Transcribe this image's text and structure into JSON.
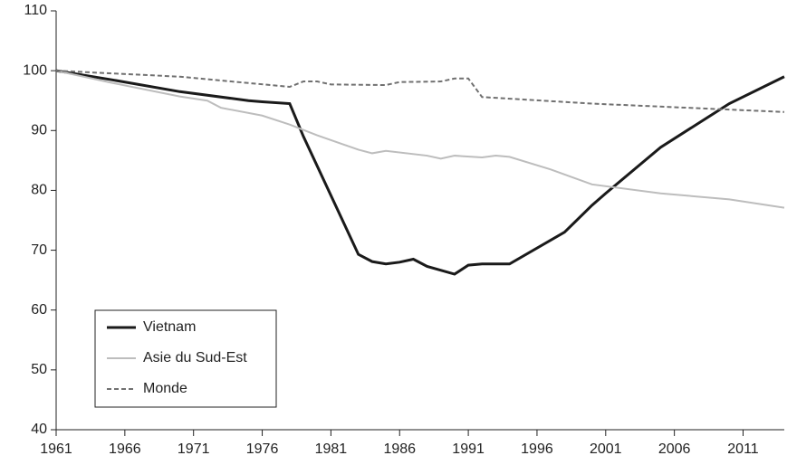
{
  "chart_data": {
    "type": "line",
    "xlim": [
      1961,
      2014
    ],
    "xticks": [
      1961,
      1966,
      1971,
      1976,
      1981,
      1986,
      1991,
      1996,
      2001,
      2006,
      2011
    ],
    "ylim": [
      40,
      110
    ],
    "yticks": [
      40,
      50,
      60,
      70,
      80,
      90,
      100,
      110
    ],
    "legend": "lower left",
    "series": [
      {
        "name": "Vietnam",
        "color": "#1a1a1a",
        "style": "solid",
        "x": [
          1961,
          1965,
          1970,
          1975,
          1976,
          1978,
          1979,
          1983,
          1984,
          1985,
          1986,
          1987,
          1988,
          1990,
          1991,
          1992,
          1994,
          1998,
          2000,
          2001,
          2005,
          2010,
          2014
        ],
        "values": [
          100,
          98.5,
          96.5,
          95,
          94.8,
          94.5,
          89,
          69.3,
          68.1,
          67.7,
          68,
          68.5,
          67.3,
          66,
          67.5,
          67.7,
          67.7,
          73,
          77.5,
          79.5,
          87.2,
          94.5,
          99
        ]
      },
      {
        "name": "Asie du Sud-Est",
        "color": "#bdbdbd",
        "style": "solid",
        "x": [
          1961,
          1965,
          1970,
          1972,
          1973,
          1976,
          1978,
          1980,
          1983,
          1984,
          1985,
          1988,
          1989,
          1990,
          1992,
          1993,
          1994,
          1997,
          2000,
          2005,
          2010,
          2014
        ],
        "values": [
          100,
          98,
          95.7,
          95,
          93.8,
          92.5,
          91,
          89.2,
          86.8,
          86.2,
          86.6,
          85.8,
          85.3,
          85.8,
          85.5,
          85.8,
          85.6,
          83.5,
          81,
          79.5,
          78.5,
          77.1
        ]
      },
      {
        "name": "Monde",
        "color": "#707070",
        "style": "dashed",
        "x": [
          1961,
          1970,
          1978,
          1979,
          1980,
          1981,
          1985,
          1986,
          1989,
          1990,
          1991,
          1992,
          2000,
          2010,
          2014
        ],
        "values": [
          100,
          99,
          97.3,
          98.2,
          98.2,
          97.7,
          97.6,
          98.1,
          98.2,
          98.7,
          98.7,
          95.6,
          94.5,
          93.5,
          93.1
        ]
      }
    ]
  }
}
